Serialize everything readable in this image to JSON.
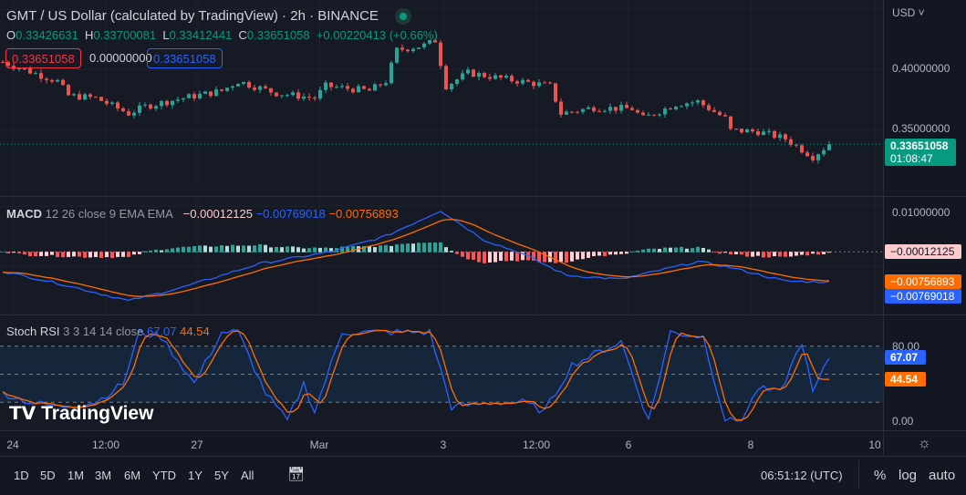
{
  "header": {
    "title": "GMT / US Dollar (calculated by TradingView) · 2h · BINANCE",
    "o_label": "O",
    "o": "0.33426631",
    "h_label": "H",
    "h": "0.33700081",
    "l_label": "L",
    "l": "0.33412441",
    "c_label": "C",
    "c": "0.33651058",
    "change": "+0.00220413 (+0.66%)",
    "sell": "0.33651058",
    "spread": "0.00000000",
    "buy": "0.33651058"
  },
  "price_axis": {
    "currency": "USD",
    "ticks": [
      "0.40000000",
      "0.35000000"
    ],
    "last": "0.33651058",
    "countdown": "01:08:47"
  },
  "macd": {
    "name": "MACD",
    "params": "12 26 close 9 EMA EMA",
    "hist": "−0.00012125",
    "macd": "−0.00769018",
    "signal": "−0.00756893",
    "axis_tick": "0.01000000"
  },
  "stoch": {
    "name": "Stoch RSI",
    "params": "3 3 14 14 close",
    "k": "67.07",
    "d": "44.54",
    "ticks": [
      "80.00",
      "0.00"
    ]
  },
  "time_axis": [
    "24",
    "12:00",
    "27",
    "Mar",
    "3",
    "12:00",
    "6",
    "8",
    "10"
  ],
  "toolbar": {
    "ranges": [
      "1D",
      "5D",
      "1M",
      "3M",
      "6M",
      "YTD",
      "1Y",
      "5Y",
      "All"
    ],
    "clock": "06:51:12 (UTC)",
    "percent": "%",
    "log": "log",
    "auto": "auto"
  },
  "watermark": "TradingView",
  "colors": {
    "up": "#26a69a",
    "down": "#ef5350",
    "macd": "#2962ff",
    "signal": "#ff6d00"
  },
  "chart_data": {
    "type": "candlestick",
    "price_keypoints": [
      [
        0,
        0.405
      ],
      [
        10,
        0.389
      ],
      [
        12,
        0.377
      ],
      [
        17,
        0.375
      ],
      [
        23,
        0.362
      ],
      [
        26,
        0.368
      ],
      [
        33,
        0.375
      ],
      [
        40,
        0.381
      ],
      [
        43,
        0.389
      ],
      [
        50,
        0.379
      ],
      [
        57,
        0.375
      ],
      [
        59,
        0.385
      ],
      [
        67,
        0.381
      ],
      [
        70,
        0.389
      ],
      [
        72,
        0.415
      ],
      [
        77,
        0.419
      ],
      [
        79,
        0.423
      ],
      [
        81,
        0.385
      ],
      [
        85,
        0.396
      ],
      [
        93,
        0.39
      ],
      [
        100,
        0.385
      ],
      [
        102,
        0.362
      ],
      [
        108,
        0.367
      ],
      [
        115,
        0.366
      ],
      [
        117,
        0.358
      ],
      [
        123,
        0.37
      ],
      [
        127,
        0.372
      ],
      [
        132,
        0.358
      ],
      [
        133,
        0.348
      ],
      [
        138,
        0.347
      ],
      [
        143,
        0.341
      ],
      [
        148,
        0.326
      ],
      [
        151,
        0.3365
      ]
    ],
    "macd_keypoints": [
      [
        0,
        -0.005
      ],
      [
        10,
        -0.008
      ],
      [
        23,
        -0.0125
      ],
      [
        33,
        -0.009
      ],
      [
        47,
        -0.003
      ],
      [
        60,
        0
      ],
      [
        70,
        0.004
      ],
      [
        80,
        0.0105
      ],
      [
        88,
        0.003
      ],
      [
        95,
        -0.0005
      ],
      [
        103,
        -0.006
      ],
      [
        113,
        -0.007
      ],
      [
        127,
        -0.0025
      ],
      [
        133,
        -0.004
      ],
      [
        143,
        -0.0075
      ],
      [
        151,
        -0.0077
      ]
    ],
    "stoch_k_keypoints": [
      [
        0,
        30
      ],
      [
        5,
        20
      ],
      [
        10,
        15
      ],
      [
        17,
        20
      ],
      [
        22,
        40
      ],
      [
        25,
        95
      ],
      [
        29,
        90
      ],
      [
        35,
        40
      ],
      [
        40,
        95
      ],
      [
        43,
        95
      ],
      [
        48,
        30
      ],
      [
        52,
        0
      ],
      [
        55,
        40
      ],
      [
        57,
        10
      ],
      [
        62,
        95
      ],
      [
        70,
        95
      ],
      [
        78,
        95
      ],
      [
        82,
        15
      ],
      [
        90,
        20
      ],
      [
        95,
        20
      ],
      [
        99,
        10
      ],
      [
        104,
        60
      ],
      [
        113,
        85
      ],
      [
        118,
        0
      ],
      [
        122,
        95
      ],
      [
        128,
        90
      ],
      [
        132,
        0
      ],
      [
        135,
        0
      ],
      [
        138,
        35
      ],
      [
        142,
        30
      ],
      [
        146,
        85
      ],
      [
        148,
        30
      ],
      [
        151,
        67
      ]
    ],
    "price_range": [
      0.2932,
      0.4568
    ],
    "macd_range": [
      -0.016,
      0.014
    ],
    "stoch_range": [
      -10,
      113
    ]
  }
}
